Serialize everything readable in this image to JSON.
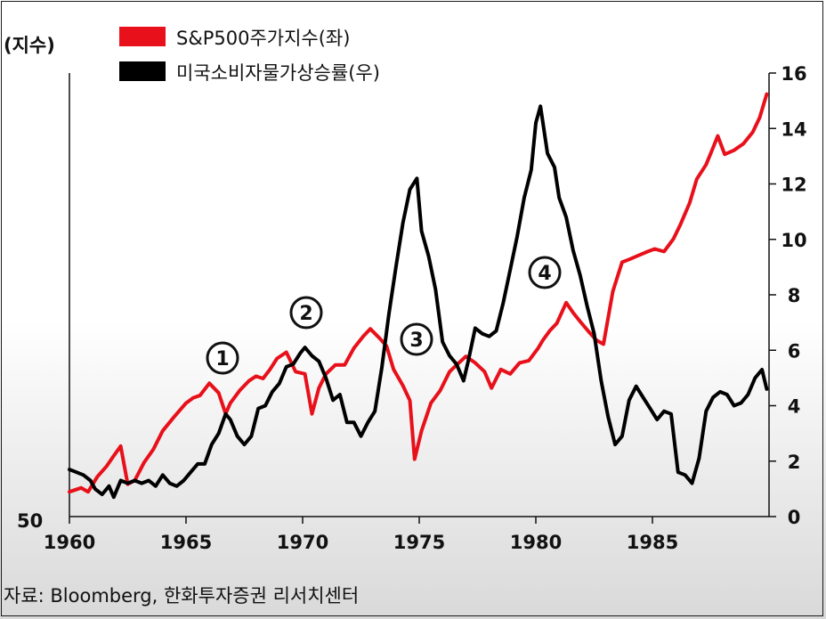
{
  "chart_data": {
    "type": "line",
    "y_left_label": "(지수)",
    "legend": [
      {
        "label": "S&P500주가지수(좌)",
        "color": "#e8101a"
      },
      {
        "label": "미국소비자물가상승률(우)",
        "color": "#000000"
      }
    ],
    "x_ticks": [
      "1960",
      "1965",
      "1970",
      "1975",
      "1980",
      "1985"
    ],
    "x_range": [
      1960,
      1990
    ],
    "y_left_ticks": [
      "50"
    ],
    "y_right_ticks": [
      "0",
      "2",
      "4",
      "6",
      "8",
      "10",
      "12",
      "14",
      "16"
    ],
    "y_right_range": [
      0,
      16
    ],
    "y_left_scale": "log",
    "annotations": [
      "1",
      "2",
      "3",
      "4"
    ],
    "series": [
      {
        "name": "S&P500주가지수(좌)",
        "axis": "left",
        "x": [
          1960.0,
          1960.5,
          1960.8,
          1961.2,
          1961.6,
          1961.9,
          1962.2,
          1962.5,
          1962.8,
          1963.2,
          1963.6,
          1964.0,
          1964.5,
          1965.0,
          1965.3,
          1965.6,
          1966.0,
          1966.4,
          1966.7,
          1966.9,
          1967.3,
          1967.7,
          1968.0,
          1968.3,
          1968.6,
          1968.9,
          1969.3,
          1969.7,
          1970.1,
          1970.4,
          1970.7,
          1971.0,
          1971.4,
          1971.8,
          1972.2,
          1972.6,
          1972.9,
          1973.3,
          1973.6,
          1973.9,
          1974.3,
          1974.6,
          1974.8,
          1975.1,
          1975.5,
          1975.9,
          1976.3,
          1976.7,
          1977.0,
          1977.4,
          1977.8,
          1978.1,
          1978.5,
          1978.9,
          1979.3,
          1979.7,
          1980.1,
          1980.3,
          1980.6,
          1980.9,
          1981.3,
          1981.6,
          1981.9,
          1982.3,
          1982.6,
          1982.9,
          1983.3,
          1983.7,
          1984.0,
          1984.4,
          1984.8,
          1985.1,
          1985.5,
          1985.9,
          1986.2,
          1986.6,
          1986.9,
          1987.3,
          1987.6,
          1987.8,
          1988.1,
          1988.5,
          1988.9,
          1989.3,
          1989.6,
          1989.9
        ],
        "y": [
          56,
          57,
          56,
          60,
          63,
          66,
          69,
          58,
          59,
          64,
          68,
          74,
          79,
          84,
          86,
          87,
          92,
          88,
          80,
          84,
          89,
          93,
          95,
          94,
          98,
          103,
          106,
          97,
          96,
          80,
          90,
          96,
          100,
          100,
          108,
          114,
          118,
          113,
          109,
          98,
          91,
          85,
          65,
          74,
          84,
          89,
          97,
          101,
          104,
          101,
          97,
          90,
          98,
          96,
          101,
          102,
          108,
          112,
          117,
          121,
          133,
          127,
          122,
          116,
          112,
          110,
          140,
          160,
          162,
          165,
          168,
          170,
          168,
          178,
          190,
          210,
          234,
          250,
          270,
          285,
          262,
          267,
          275,
          290,
          310,
          345
        ]
      },
      {
        "name": "미국소비자물가상승률(우)",
        "axis": "right",
        "x": [
          1960.0,
          1960.3,
          1960.6,
          1960.9,
          1961.1,
          1961.4,
          1961.7,
          1961.9,
          1962.2,
          1962.5,
          1962.8,
          1963.1,
          1963.4,
          1963.7,
          1964.0,
          1964.3,
          1964.6,
          1964.9,
          1965.2,
          1965.5,
          1965.8,
          1966.1,
          1966.4,
          1966.7,
          1966.9,
          1967.2,
          1967.5,
          1967.8,
          1968.1,
          1968.4,
          1968.7,
          1969.0,
          1969.3,
          1969.6,
          1969.9,
          1970.1,
          1970.4,
          1970.7,
          1971.0,
          1971.3,
          1971.6,
          1971.9,
          1972.2,
          1972.5,
          1972.8,
          1973.1,
          1973.4,
          1973.7,
          1974.0,
          1974.3,
          1974.6,
          1974.9,
          1975.1,
          1975.4,
          1975.7,
          1976.0,
          1976.3,
          1976.6,
          1976.9,
          1977.1,
          1977.4,
          1977.7,
          1978.0,
          1978.3,
          1978.6,
          1978.9,
          1979.2,
          1979.5,
          1979.8,
          1980.0,
          1980.2,
          1980.5,
          1980.8,
          1981.0,
          1981.3,
          1981.6,
          1981.9,
          1982.2,
          1982.5,
          1982.8,
          1983.1,
          1983.4,
          1983.7,
          1984.0,
          1984.3,
          1984.6,
          1984.9,
          1985.2,
          1985.5,
          1985.8,
          1986.1,
          1986.4,
          1986.7,
          1987.0,
          1987.3,
          1987.6,
          1987.9,
          1988.2,
          1988.5,
          1988.8,
          1989.1,
          1989.4,
          1989.7,
          1989.9
        ],
        "y": [
          1.7,
          1.6,
          1.5,
          1.3,
          1.0,
          0.8,
          1.1,
          0.7,
          1.3,
          1.2,
          1.3,
          1.2,
          1.3,
          1.1,
          1.5,
          1.2,
          1.1,
          1.3,
          1.6,
          1.9,
          1.9,
          2.6,
          3.0,
          3.7,
          3.5,
          2.9,
          2.6,
          2.9,
          3.9,
          4.0,
          4.5,
          4.8,
          5.4,
          5.5,
          5.9,
          6.1,
          5.8,
          5.6,
          5.0,
          4.2,
          4.4,
          3.4,
          3.4,
          2.9,
          3.4,
          3.8,
          5.4,
          7.3,
          9.0,
          10.6,
          11.8,
          12.2,
          10.3,
          9.4,
          8.2,
          6.3,
          5.8,
          5.5,
          4.9,
          5.6,
          6.8,
          6.6,
          6.5,
          6.7,
          7.7,
          8.9,
          10.1,
          11.5,
          12.5,
          14.2,
          14.8,
          13.1,
          12.6,
          11.5,
          10.8,
          9.6,
          8.7,
          7.6,
          6.6,
          4.9,
          3.6,
          2.6,
          2.9,
          4.2,
          4.7,
          4.3,
          3.9,
          3.5,
          3.8,
          3.7,
          1.6,
          1.5,
          1.2,
          2.1,
          3.8,
          4.3,
          4.5,
          4.4,
          4.0,
          4.1,
          4.4,
          5.0,
          5.3,
          4.6
        ]
      }
    ]
  },
  "source": "자료: Bloomberg, 한화투자증권 리서치센터"
}
